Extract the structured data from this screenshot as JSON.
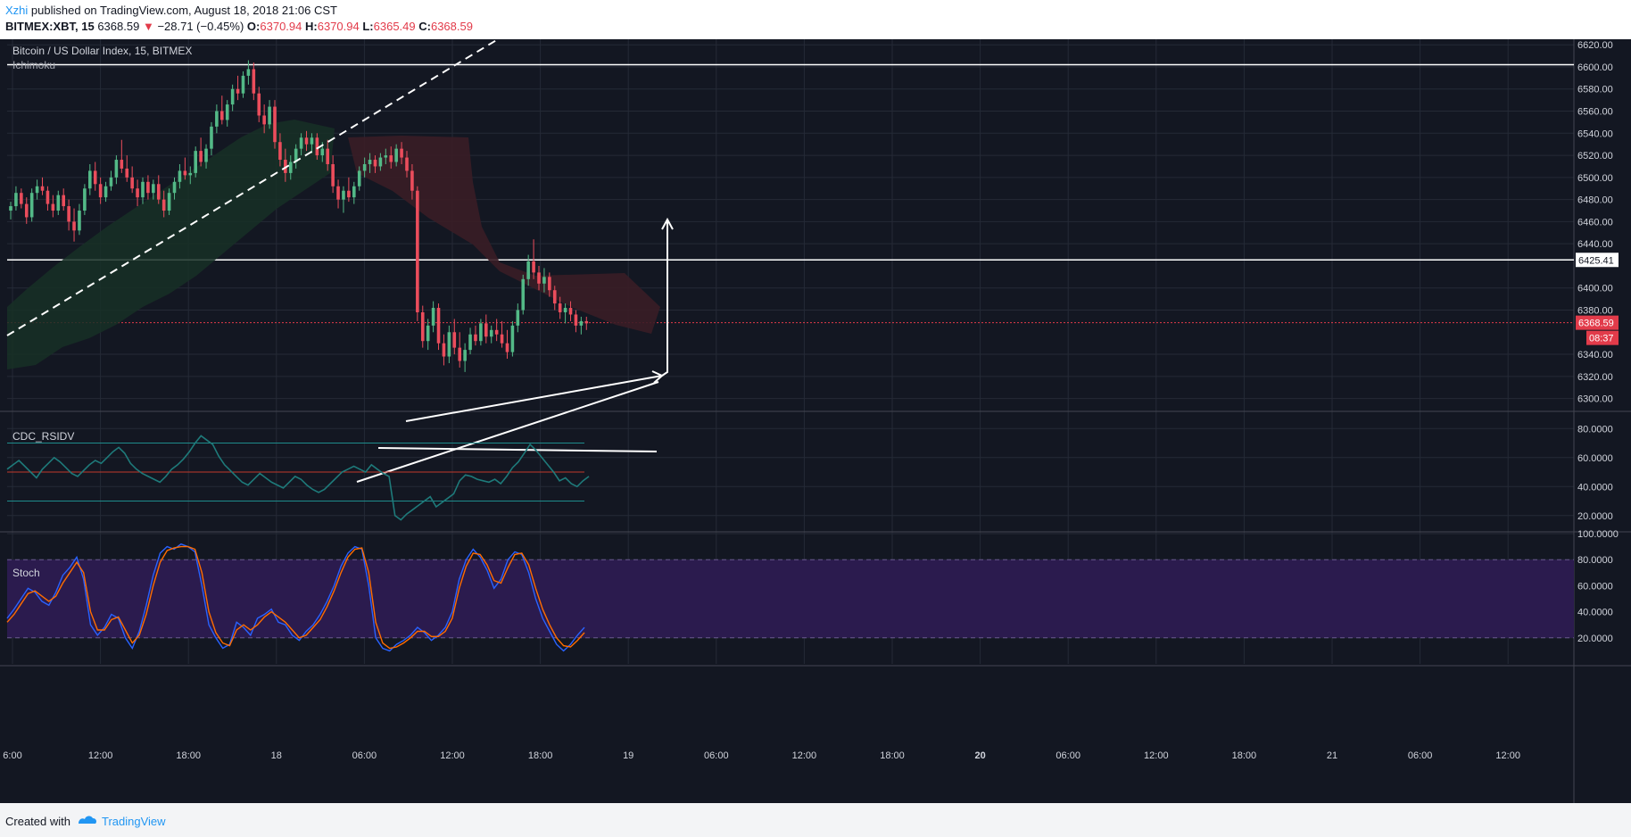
{
  "header": {
    "author": "Xzhi",
    "published_text": "published on TradingView.com, August 18, 2018 21:06 CST",
    "symbol": "BITMEX:XBT, 15",
    "last_price": "6368.59",
    "down_arrow": "▼",
    "change": "−28.71 (−0.45%)",
    "open_label": "O:",
    "open_value": "6370.94",
    "high_label": "H:",
    "high_value": "6370.94",
    "low_label": "L:",
    "low_value": "6365.49",
    "close_label": "C:",
    "close_value": "6368.59"
  },
  "footer": {
    "created_with": "Created with",
    "brand": "TradingView"
  },
  "colors": {
    "background": "#131722",
    "grid": "#252a36",
    "up": "#53b987",
    "down": "#eb4d5c",
    "axis_text": "#d1d4dc",
    "rsi_line": "#1e7a7a",
    "stoch_k": "#2962ff",
    "stoch_d": "#ff6d00",
    "stoch_band": "#2b1b4e",
    "price_tag": "#e23b4a"
  },
  "chart_data": [
    {
      "type": "candlestick",
      "name": "price",
      "title": "Bitcoin / US Dollar Index, 15, BITMEX",
      "indicator_label": "Ichimoku",
      "ylim": [
        6290,
        6625
      ],
      "y_ticks": [
        "6620.00",
        "6600.00",
        "6580.00",
        "6560.00",
        "6540.00",
        "6520.00",
        "6500.00",
        "6480.00",
        "6460.00",
        "6440.00",
        "6400.00",
        "6380.00",
        "6340.00",
        "6320.00",
        "6300.00"
      ],
      "y_tick_values": [
        6620,
        6600,
        6580,
        6560,
        6540,
        6520,
        6500,
        6480,
        6460,
        6440,
        6400,
        6380,
        6340,
        6320,
        6300
      ],
      "x_ticks": [
        "6:00",
        "12:00",
        "18:00",
        "18",
        "06:00",
        "12:00",
        "18:00",
        "19",
        "06:00",
        "12:00",
        "18:00",
        "20",
        "06:00",
        "12:00",
        "18:00",
        "21",
        "06:00",
        "12:00"
      ],
      "x_tick_bold": [
        false,
        false,
        false,
        false,
        false,
        false,
        false,
        false,
        false,
        false,
        false,
        true,
        false,
        false,
        false,
        false,
        false,
        false
      ],
      "horizontal_lines": [
        6602,
        6425.41
      ],
      "horizontal_label": "6425.41",
      "last_price": 6368.59,
      "last_price_label": "6368.59",
      "countdown_label": "08:37",
      "candles": [
        [
          6470,
          6478,
          6462,
          6474
        ],
        [
          6474,
          6492,
          6470,
          6486
        ],
        [
          6486,
          6490,
          6472,
          6476
        ],
        [
          6476,
          6482,
          6458,
          6464
        ],
        [
          6464,
          6490,
          6460,
          6486
        ],
        [
          6486,
          6498,
          6480,
          6492
        ],
        [
          6492,
          6500,
          6484,
          6488
        ],
        [
          6488,
          6492,
          6470,
          6476
        ],
        [
          6476,
          6484,
          6464,
          6470
        ],
        [
          6470,
          6488,
          6466,
          6484
        ],
        [
          6484,
          6490,
          6470,
          6474
        ],
        [
          6474,
          6480,
          6452,
          6460
        ],
        [
          6460,
          6472,
          6442,
          6452
        ],
        [
          6452,
          6476,
          6448,
          6470
        ],
        [
          6470,
          6494,
          6466,
          6490
        ],
        [
          6490,
          6512,
          6484,
          6506
        ],
        [
          6506,
          6514,
          6488,
          6494
        ],
        [
          6494,
          6500,
          6476,
          6482
        ],
        [
          6482,
          6496,
          6478,
          6492
        ],
        [
          6492,
          6506,
          6488,
          6500
        ],
        [
          6500,
          6520,
          6494,
          6516
        ],
        [
          6516,
          6534,
          6504,
          6508
        ],
        [
          6508,
          6520,
          6496,
          6500
        ],
        [
          6500,
          6510,
          6486,
          6490
        ],
        [
          6490,
          6498,
          6474,
          6482
        ],
        [
          6482,
          6500,
          6476,
          6496
        ],
        [
          6496,
          6502,
          6480,
          6486
        ],
        [
          6486,
          6498,
          6480,
          6494
        ],
        [
          6494,
          6502,
          6476,
          6480
        ],
        [
          6480,
          6488,
          6464,
          6470
        ],
        [
          6470,
          6490,
          6466,
          6486
        ],
        [
          6486,
          6500,
          6480,
          6496
        ],
        [
          6496,
          6512,
          6490,
          6506
        ],
        [
          6506,
          6518,
          6498,
          6502
        ],
        [
          6502,
          6510,
          6494,
          6504
        ],
        [
          6504,
          6528,
          6500,
          6524
        ],
        [
          6524,
          6536,
          6510,
          6514
        ],
        [
          6514,
          6530,
          6508,
          6526
        ],
        [
          6526,
          6550,
          6520,
          6546
        ],
        [
          6546,
          6566,
          6540,
          6560
        ],
        [
          6560,
          6574,
          6548,
          6552
        ],
        [
          6552,
          6570,
          6546,
          6566
        ],
        [
          6566,
          6584,
          6560,
          6580
        ],
        [
          6580,
          6592,
          6570,
          6576
        ],
        [
          6576,
          6596,
          6572,
          6592
        ],
        [
          6592,
          6606,
          6584,
          6598
        ],
        [
          6598,
          6604,
          6570,
          6576
        ],
        [
          6576,
          6582,
          6550,
          6556
        ],
        [
          6556,
          6566,
          6540,
          6548
        ],
        [
          6548,
          6570,
          6544,
          6564
        ],
        [
          6564,
          6570,
          6526,
          6532
        ],
        [
          6532,
          6540,
          6510,
          6516
        ],
        [
          6516,
          6526,
          6496,
          6504
        ],
        [
          6504,
          6520,
          6498,
          6514
        ],
        [
          6514,
          6530,
          6508,
          6526
        ],
        [
          6526,
          6540,
          6520,
          6536
        ],
        [
          6536,
          6542,
          6524,
          6530
        ],
        [
          6530,
          6540,
          6522,
          6536
        ],
        [
          6536,
          6540,
          6516,
          6520
        ],
        [
          6520,
          6532,
          6514,
          6526
        ],
        [
          6526,
          6534,
          6506,
          6512
        ],
        [
          6512,
          6520,
          6486,
          6492
        ],
        [
          6492,
          6498,
          6472,
          6480
        ],
        [
          6480,
          6492,
          6468,
          6488
        ],
        [
          6488,
          6500,
          6478,
          6482
        ],
        [
          6482,
          6496,
          6476,
          6492
        ],
        [
          6492,
          6510,
          6488,
          6506
        ],
        [
          6506,
          6518,
          6500,
          6512
        ],
        [
          6512,
          6522,
          6504,
          6516
        ],
        [
          6516,
          6520,
          6504,
          6510
        ],
        [
          6510,
          6522,
          6506,
          6518
        ],
        [
          6518,
          6526,
          6512,
          6520
        ],
        [
          6520,
          6528,
          6508,
          6514
        ],
        [
          6514,
          6530,
          6510,
          6526
        ],
        [
          6526,
          6532,
          6512,
          6518
        ],
        [
          6518,
          6524,
          6500,
          6506
        ],
        [
          6506,
          6512,
          6480,
          6488
        ],
        [
          6488,
          6492,
          6370,
          6378
        ],
        [
          6378,
          6384,
          6346,
          6352
        ],
        [
          6352,
          6372,
          6344,
          6366
        ],
        [
          6366,
          6388,
          6360,
          6382
        ],
        [
          6382,
          6386,
          6344,
          6350
        ],
        [
          6350,
          6358,
          6330,
          6338
        ],
        [
          6338,
          6366,
          6332,
          6360
        ],
        [
          6360,
          6372,
          6340,
          6346
        ],
        [
          6346,
          6360,
          6328,
          6334
        ],
        [
          6334,
          6350,
          6324,
          6344
        ],
        [
          6344,
          6364,
          6340,
          6358
        ],
        [
          6358,
          6366,
          6348,
          6352
        ],
        [
          6352,
          6372,
          6348,
          6368
        ],
        [
          6368,
          6376,
          6350,
          6356
        ],
        [
          6356,
          6366,
          6350,
          6362
        ],
        [
          6362,
          6372,
          6352,
          6358
        ],
        [
          6358,
          6370,
          6346,
          6350
        ],
        [
          6350,
          6362,
          6336,
          6342
        ],
        [
          6342,
          6370,
          6338,
          6366
        ],
        [
          6366,
          6386,
          6360,
          6380
        ],
        [
          6380,
          6412,
          6376,
          6408
        ],
        [
          6408,
          6430,
          6402,
          6424
        ],
        [
          6424,
          6444,
          6408,
          6414
        ],
        [
          6414,
          6420,
          6398,
          6404
        ],
        [
          6404,
          6418,
          6396,
          6410
        ],
        [
          6410,
          6414,
          6392,
          6398
        ],
        [
          6398,
          6402,
          6380,
          6386
        ],
        [
          6386,
          6392,
          6372,
          6378
        ],
        [
          6378,
          6386,
          6368,
          6382
        ],
        [
          6382,
          6388,
          6370,
          6376
        ],
        [
          6376,
          6380,
          6360,
          6366
        ],
        [
          6366,
          6374,
          6358,
          6370
        ],
        [
          6370,
          6374,
          6362,
          6368
        ]
      ]
    },
    {
      "type": "line",
      "name": "rsi",
      "title": "CDC_RSIDV",
      "ylim": [
        10,
        90
      ],
      "y_ticks": [
        "80.0000",
        "60.0000",
        "40.0000",
        "20.0000"
      ],
      "y_tick_values": [
        80,
        60,
        40,
        20
      ],
      "levels": [
        70,
        50,
        30
      ],
      "values": [
        52,
        55,
        58,
        54,
        50,
        46,
        52,
        56,
        60,
        57,
        53,
        49,
        47,
        51,
        55,
        58,
        56,
        60,
        64,
        67,
        63,
        56,
        52,
        49,
        47,
        45,
        43,
        47,
        52,
        55,
        59,
        64,
        70,
        75,
        72,
        69,
        61,
        55,
        51,
        47,
        43,
        41,
        45,
        49,
        46,
        43,
        41,
        39,
        43,
        47,
        45,
        41,
        38,
        36,
        38,
        42,
        46,
        50,
        52,
        54,
        52,
        50,
        55,
        52,
        49,
        47,
        20,
        17,
        21,
        24,
        27,
        30,
        33,
        26,
        29,
        32,
        35,
        44,
        48,
        47,
        45,
        44,
        43,
        45,
        42,
        47,
        53,
        57,
        63,
        69,
        65,
        60,
        55,
        50,
        44,
        46,
        42,
        40,
        44,
        47
      ]
    },
    {
      "type": "line",
      "name": "stoch",
      "title": "Stoch",
      "ylim": [
        0,
        100
      ],
      "y_ticks": [
        "100.0000",
        "80.0000",
        "60.0000",
        "40.0000",
        "20.0000"
      ],
      "y_tick_values": [
        100,
        80,
        60,
        40,
        20
      ],
      "band": [
        20,
        80
      ],
      "series": [
        {
          "values": [
            35,
            42,
            50,
            58,
            55,
            48,
            45,
            55,
            68,
            74,
            82,
            65,
            30,
            22,
            28,
            38,
            35,
            20,
            12,
            25,
            45,
            68,
            85,
            90,
            88,
            92,
            90,
            86,
            60,
            30,
            20,
            12,
            15,
            32,
            28,
            22,
            35,
            38,
            42,
            32,
            30,
            22,
            18,
            25,
            30,
            38,
            48,
            60,
            75,
            85,
            90,
            88,
            60,
            20,
            12,
            10,
            15,
            18,
            22,
            28,
            24,
            18,
            22,
            28,
            40,
            65,
            80,
            88,
            82,
            72,
            58,
            65,
            80,
            86,
            84,
            70,
            50,
            35,
            25,
            15,
            10,
            15,
            22,
            28
          ]
        },
        {
          "values": [
            32,
            38,
            46,
            54,
            56,
            52,
            48,
            52,
            62,
            70,
            78,
            70,
            40,
            26,
            26,
            34,
            36,
            26,
            16,
            22,
            38,
            60,
            78,
            87,
            89,
            90,
            90,
            88,
            70,
            40,
            24,
            16,
            14,
            26,
            30,
            26,
            30,
            36,
            40,
            36,
            32,
            26,
            20,
            22,
            28,
            34,
            44,
            56,
            70,
            82,
            88,
            89,
            70,
            32,
            16,
            12,
            13,
            16,
            20,
            25,
            25,
            21,
            21,
            25,
            35,
            58,
            75,
            85,
            84,
            76,
            64,
            62,
            74,
            84,
            85,
            76,
            58,
            42,
            30,
            20,
            14,
            13,
            18,
            24
          ]
        }
      ]
    }
  ]
}
